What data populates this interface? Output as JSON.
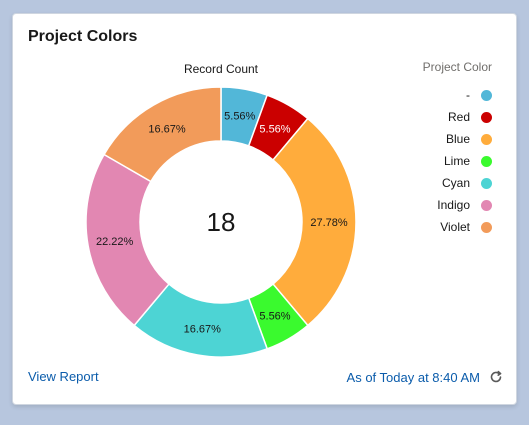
{
  "card": {
    "title": "Project Colors",
    "footer_link": "View Report",
    "timestamp": "As of Today at 8:40 AM",
    "refresh_icon": "refresh-icon"
  },
  "chart_data": {
    "type": "donut",
    "title": "Record Count",
    "center_total": "18",
    "legend_title": "Project Color",
    "legend_position": "right",
    "slices": [
      {
        "label": "-",
        "value": 1,
        "percent_label": "5.56%",
        "color": "#52b7d8"
      },
      {
        "label": "Red",
        "value": 1,
        "percent_label": "5.56%",
        "color": "#cb0000"
      },
      {
        "label": "Blue",
        "value": 5,
        "percent_label": "27.78%",
        "color": "#ffac3c"
      },
      {
        "label": "Lime",
        "value": 1,
        "percent_label": "5.56%",
        "color": "#3afa2e"
      },
      {
        "label": "Cyan",
        "value": 3,
        "percent_label": "16.67%",
        "color": "#4dd4d4"
      },
      {
        "label": "Indigo",
        "value": 4,
        "percent_label": "22.22%",
        "color": "#e287b2"
      },
      {
        "label": "Violet",
        "value": 3,
        "percent_label": "16.67%",
        "color": "#f29b5a"
      }
    ]
  }
}
